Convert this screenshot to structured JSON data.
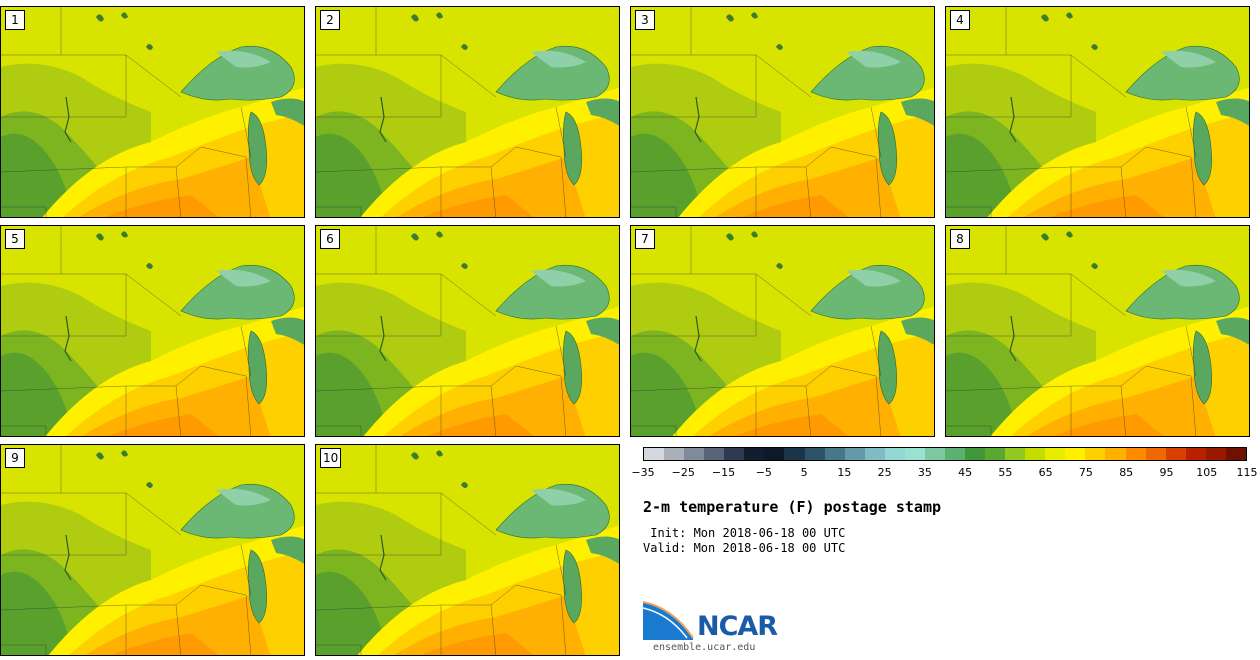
{
  "panels": [
    "1",
    "2",
    "3",
    "4",
    "5",
    "6",
    "7",
    "8",
    "9",
    "10"
  ],
  "colorbar": {
    "ticks": [
      "−35",
      "−25",
      "−15",
      "−5",
      "5",
      "15",
      "25",
      "35",
      "45",
      "55",
      "65",
      "75",
      "85",
      "95",
      "105",
      "115"
    ],
    "colors": [
      "#d4d8de",
      "#aab0b8",
      "#808a98",
      "#5a6478",
      "#2e3a52",
      "#141c30",
      "#0e1a2a",
      "#1c3448",
      "#2e5268",
      "#477888",
      "#6699a8",
      "#80bcc4",
      "#92d8d4",
      "#98e2d2",
      "#7cc8a0",
      "#5cb070",
      "#409838",
      "#5aa830",
      "#92c820",
      "#c4dc00",
      "#e8ec00",
      "#fff000",
      "#ffd000",
      "#ffb000",
      "#ff8c00",
      "#f06800",
      "#d84000",
      "#b82200",
      "#981800",
      "#701000"
    ]
  },
  "title": "2-m temperature (F) postage stamp",
  "init": " Init: Mon 2018-06-18 00 UTC",
  "valid": "Valid: Mon 2018-06-18 00 UTC",
  "logo_text": "NCAR",
  "url": "ensemble.ucar.edu"
}
